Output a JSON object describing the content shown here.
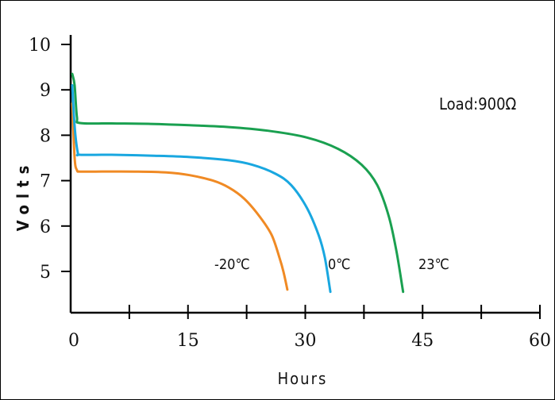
{
  "chart_data": {
    "type": "line",
    "xlabel": "Hours",
    "ylabel": "Volts",
    "xlim": [
      0,
      60
    ],
    "ylim": [
      4,
      10
    ],
    "x_ticks": [
      0,
      15,
      30,
      45,
      60
    ],
    "x_minor_ticks": [
      7.5,
      22.5,
      37.5,
      52.5
    ],
    "y_ticks": [
      5,
      6,
      7,
      8,
      9,
      10
    ],
    "grid": false,
    "annotation": "Load:900Ω",
    "series": [
      {
        "name": "-20℃",
        "color": "#f08a24",
        "x": [
          0,
          0.3,
          0.6,
          1,
          3,
          8,
          12,
          15,
          18,
          20,
          22,
          24,
          25.5,
          26.5,
          27,
          27.5
        ],
        "y": [
          8.7,
          7.5,
          7.23,
          7.2,
          7.2,
          7.2,
          7.18,
          7.12,
          7.0,
          6.85,
          6.6,
          6.2,
          5.8,
          5.3,
          5.0,
          4.6
        ]
      },
      {
        "name": "0℃",
        "color": "#19a7e0",
        "x": [
          0,
          0.3,
          0.7,
          1,
          5,
          10,
          15,
          20,
          23,
          26,
          28,
          30,
          31.5,
          32.3,
          33
        ],
        "y": [
          9.1,
          8.2,
          7.62,
          7.57,
          7.57,
          7.55,
          7.52,
          7.45,
          7.35,
          7.15,
          6.9,
          6.4,
          5.8,
          5.3,
          4.55
        ]
      },
      {
        "name": "23℃",
        "color": "#1aa050",
        "x": [
          0,
          0.3,
          0.6,
          1,
          5,
          10,
          15,
          20,
          25,
          30,
          34,
          37,
          39,
          40.5,
          41.5,
          42.3
        ],
        "y": [
          9.35,
          9.1,
          8.4,
          8.27,
          8.26,
          8.25,
          8.22,
          8.18,
          8.1,
          7.95,
          7.7,
          7.35,
          6.9,
          6.2,
          5.4,
          4.55
        ]
      }
    ],
    "series_labels": [
      "-20℃",
      "0℃",
      "23℃"
    ]
  }
}
